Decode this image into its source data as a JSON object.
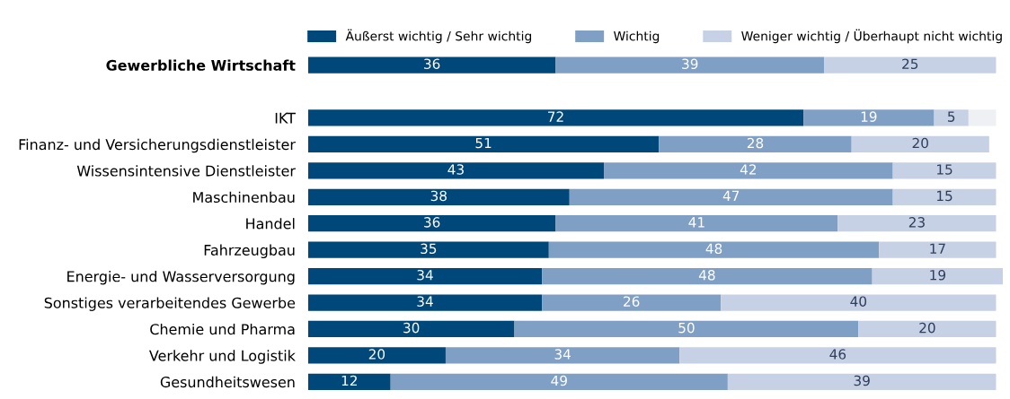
{
  "chart_data": {
    "type": "bar",
    "orientation": "horizontal",
    "stacked": true,
    "xlim": [
      0,
      101
    ],
    "tick_labels": "y",
    "legend": "top",
    "grid": false,
    "categories": [
      "Gewerbliche Wirtschaft",
      null,
      "IKT",
      "Finanz- und Versicherungsdienstleister",
      "Wissensintensive Dienstleister",
      "Maschinenbau",
      "Handel",
      "Fahrzeugbau",
      "Energie- und Wasserversorgung",
      "Sonstiges verarbeitendes Gewerbe",
      "Chemie und Pharma",
      "Verkehr und Logistik",
      "Gesundheitswesen"
    ],
    "series": [
      {
        "name": "Äußerst wichtig / Sehr wichtig",
        "color": "#00477a",
        "values": [
          36,
          null,
          72,
          51,
          43,
          38,
          36,
          35,
          34,
          34,
          30,
          20,
          12
        ],
        "value_labels": [
          "36",
          null,
          "72",
          "51",
          "43",
          "38",
          "36",
          "35",
          "34",
          "34",
          "30",
          "20",
          "12"
        ]
      },
      {
        "name": "Wichtig",
        "color": "#809fc4",
        "values": [
          39,
          null,
          19,
          28,
          42,
          47,
          41,
          48,
          48,
          26,
          50,
          34,
          49
        ],
        "value_labels": [
          "39",
          null,
          "19",
          "28",
          "42",
          "47",
          "41",
          "48",
          "48",
          "26",
          "50",
          "34",
          "49"
        ]
      },
      {
        "name": "Weniger wichtig / Überhaupt nicht wichtig",
        "color": "#c7d1e5",
        "values": [
          25,
          null,
          5,
          20,
          15,
          15,
          23,
          17,
          19,
          40,
          20,
          46,
          39
        ],
        "value_labels": [
          "25",
          null,
          "5",
          "20",
          "15",
          "15",
          "23",
          "17",
          "19",
          "40",
          "20",
          "46",
          "39"
        ]
      },
      {
        "color": "#eef0f4",
        "values": [
          0,
          null,
          4,
          0,
          0,
          0,
          0,
          0,
          0,
          0,
          0,
          0,
          0
        ]
      }
    ]
  }
}
